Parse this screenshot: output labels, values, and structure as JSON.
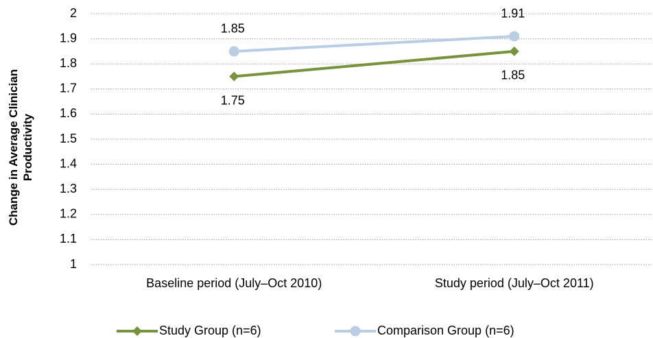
{
  "chart_data": {
    "type": "line",
    "y_label": "Change in Average Clinician Productivity",
    "categories": [
      "Baseline period (July–Oct 2010)",
      "Study period (July–Oct 2011)"
    ],
    "series": [
      {
        "name": "Study Group (n=6)",
        "color": "#77933c",
        "marker": "diamond",
        "label_position": "below",
        "values": [
          1.75,
          1.85
        ]
      },
      {
        "name": "Comparison Group (n=6)",
        "color": "#b9cde5",
        "marker": "circle",
        "label_position": "above",
        "values": [
          1.85,
          1.91
        ]
      }
    ],
    "ylim": [
      1,
      2
    ],
    "yticks": [
      1,
      1.1,
      1.2,
      1.3,
      1.4,
      1.5,
      1.6,
      1.7,
      1.8,
      1.9,
      2
    ],
    "grid": true,
    "legend": "bottom"
  }
}
